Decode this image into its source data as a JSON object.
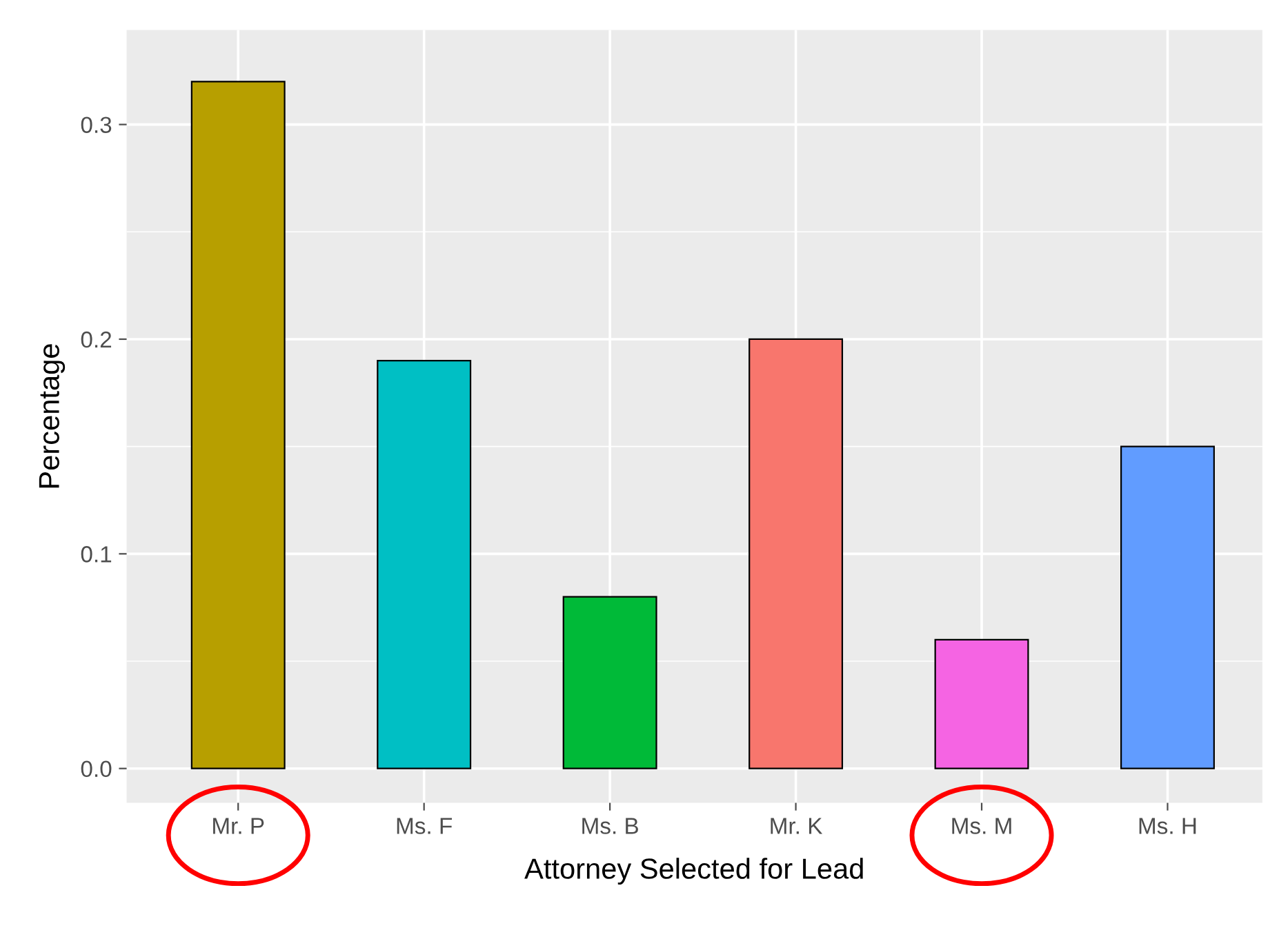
{
  "chart_data": {
    "type": "bar",
    "xlabel": "Attorney Selected for Lead",
    "ylabel": "Percentage",
    "categories": [
      "Mr. P",
      "Ms. F",
      "Ms. B",
      "Mr. K",
      "Ms. M",
      "Ms. H"
    ],
    "values": [
      0.32,
      0.19,
      0.08,
      0.2,
      0.06,
      0.15
    ],
    "colors": [
      "#b79f00",
      "#00bfc4",
      "#00ba38",
      "#f8766d",
      "#f564e3",
      "#619cff"
    ],
    "ylim": [
      -0.016,
      0.344
    ],
    "yticks": [
      {
        "value": 0,
        "label": "0.0"
      },
      {
        "value": 0.1,
        "label": "0.1"
      },
      {
        "value": 0.2,
        "label": "0.2"
      },
      {
        "value": 0.3,
        "label": "0.3"
      }
    ],
    "grid": true,
    "legend": false
  }
}
